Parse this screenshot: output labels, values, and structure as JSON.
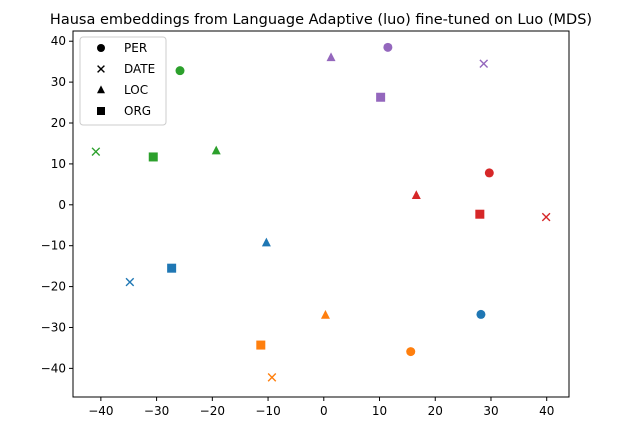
{
  "chart_data": {
    "type": "scatter",
    "title": "Hausa embeddings from Language Adaptive (luo) fine-tuned on Luo (MDS)",
    "xlabel": "",
    "ylabel": "",
    "xlim": [
      -45,
      44
    ],
    "ylim": [
      -47,
      42.5
    ],
    "xticks": [
      -40,
      -30,
      -20,
      -10,
      0,
      10,
      20,
      30,
      40
    ],
    "yticks": [
      -40,
      -30,
      -20,
      -10,
      0,
      10,
      20,
      30,
      40
    ],
    "legend": {
      "placement": "top-left",
      "entries": [
        {
          "label": "PER",
          "marker": "circle"
        },
        {
          "label": "DATE",
          "marker": "x"
        },
        {
          "label": "LOC",
          "marker": "triangle"
        },
        {
          "label": "ORG",
          "marker": "square"
        }
      ]
    },
    "colors": {
      "blue": "#1f77b4",
      "orange": "#ff7f0e",
      "green": "#2ca02c",
      "red": "#d62728",
      "purple": "#9467bd"
    },
    "points": [
      {
        "x": 28.2,
        "y": -26.8,
        "category": "PER",
        "color": "blue"
      },
      {
        "x": -34.8,
        "y": -18.9,
        "category": "DATE",
        "color": "blue"
      },
      {
        "x": -10.3,
        "y": -9.3,
        "category": "LOC",
        "color": "blue"
      },
      {
        "x": -27.3,
        "y": -15.5,
        "category": "ORG",
        "color": "blue"
      },
      {
        "x": 15.6,
        "y": -35.9,
        "category": "PER",
        "color": "orange"
      },
      {
        "x": -9.3,
        "y": -42.2,
        "category": "DATE",
        "color": "orange"
      },
      {
        "x": 0.3,
        "y": -27.0,
        "category": "LOC",
        "color": "orange"
      },
      {
        "x": -11.3,
        "y": -34.3,
        "category": "ORG",
        "color": "orange"
      },
      {
        "x": -25.8,
        "y": 32.8,
        "category": "PER",
        "color": "green"
      },
      {
        "x": -40.9,
        "y": 13.0,
        "category": "DATE",
        "color": "green"
      },
      {
        "x": -19.3,
        "y": 13.2,
        "category": "LOC",
        "color": "green"
      },
      {
        "x": -30.6,
        "y": 11.7,
        "category": "ORG",
        "color": "green"
      },
      {
        "x": 29.7,
        "y": 7.8,
        "category": "PER",
        "color": "red"
      },
      {
        "x": 39.9,
        "y": -3.0,
        "category": "DATE",
        "color": "red"
      },
      {
        "x": 16.6,
        "y": 2.3,
        "category": "LOC",
        "color": "red"
      },
      {
        "x": 28.0,
        "y": -2.3,
        "category": "ORG",
        "color": "red"
      },
      {
        "x": 11.5,
        "y": 38.5,
        "category": "PER",
        "color": "purple"
      },
      {
        "x": 28.7,
        "y": 34.5,
        "category": "DATE",
        "color": "purple"
      },
      {
        "x": 1.3,
        "y": 36.0,
        "category": "LOC",
        "color": "purple"
      },
      {
        "x": 10.2,
        "y": 26.3,
        "category": "ORG",
        "color": "purple"
      }
    ]
  }
}
